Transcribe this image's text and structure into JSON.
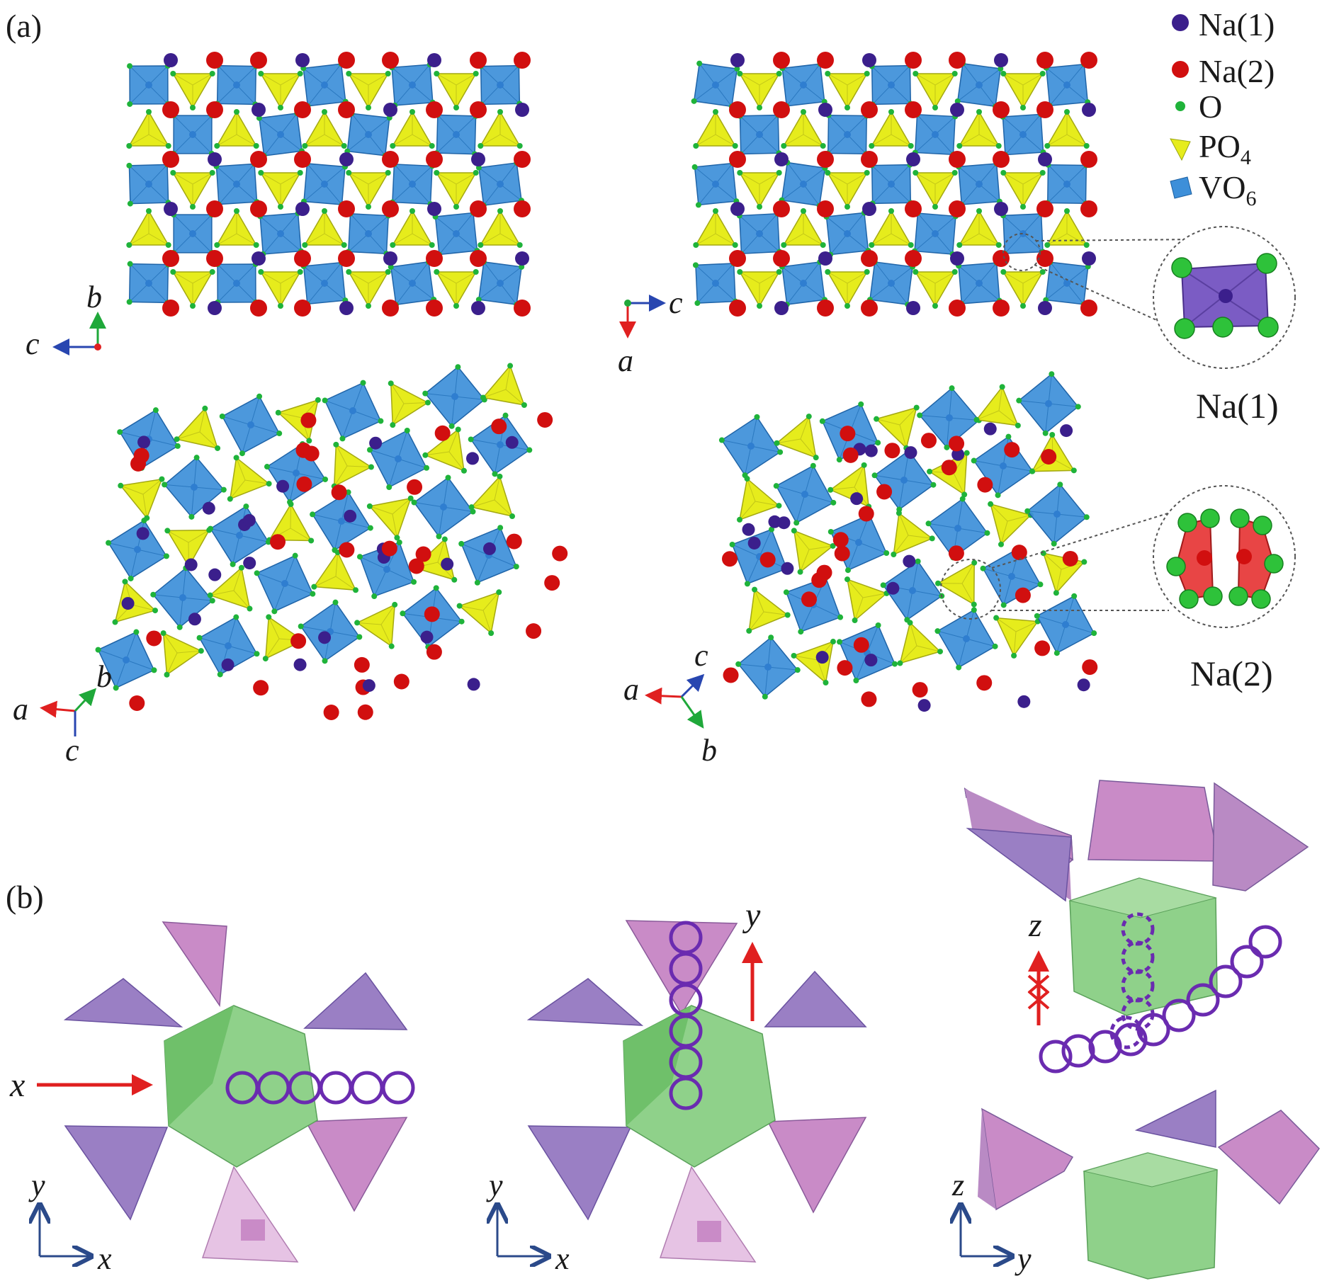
{
  "panel_labels": {
    "a": "(a)",
    "b": "(b)"
  },
  "legend": {
    "na1": {
      "label": "Na(1)",
      "color": "#3b1f8c"
    },
    "na2": {
      "label": "Na(2)",
      "color": "#d10f0f"
    },
    "o": {
      "label": "O",
      "color": "#1fb33a"
    },
    "po4": {
      "label_main": "PO",
      "label_sub": "4",
      "color": "#e6ec1c"
    },
    "vo6": {
      "label_main": "VO",
      "label_sub": "6",
      "color": "#3d8fd9"
    }
  },
  "insets": {
    "na1_caption": "Na(1)",
    "na2_caption": "Na(2)"
  },
  "axes_a": {
    "view1": {
      "up": "b",
      "left": "c"
    },
    "view2": {
      "right": "c",
      "down": "a"
    },
    "view3": {
      "left": "a",
      "upright": "b",
      "down": "c"
    },
    "view4": {
      "left": "a",
      "upright": "c",
      "downright": "b"
    }
  },
  "panel_b": {
    "view1": {
      "arrow_label": "x",
      "axis_up": "y",
      "axis_right": "x"
    },
    "view2": {
      "arrow_label": "y",
      "axis_up": "y",
      "axis_right": "x"
    },
    "view3": {
      "arrow_label": "z",
      "axis_up": "z",
      "axis_right": "y"
    }
  },
  "colors": {
    "po4_pink": "#c98bc7",
    "po4_purple": "#9a7fc4",
    "vo6_green": "#8fd18a",
    "diffusion_path": "#6a2bb0",
    "arrow_red": "#e02020",
    "axis_blue": "#2b4a8a"
  }
}
